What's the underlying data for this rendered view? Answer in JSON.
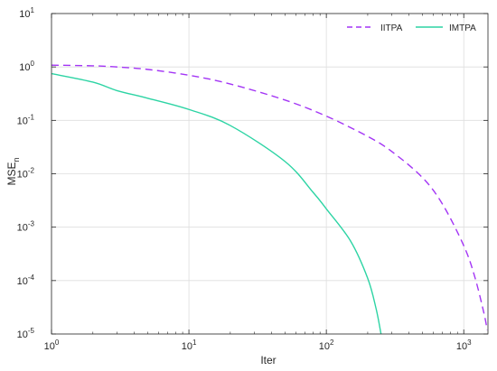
{
  "chart_data": {
    "type": "line",
    "xscale": "log",
    "yscale": "log",
    "xlim": [
      1,
      1500
    ],
    "ylim": [
      1e-05,
      10
    ],
    "grid": true,
    "legend_position": "top-right",
    "xlabel": "Iter",
    "ylabel": "MSE",
    "ylabel_subscript": "n",
    "x_ticks": [
      {
        "value": 1,
        "base": "10",
        "exp": "0"
      },
      {
        "value": 10,
        "base": "10",
        "exp": "1"
      },
      {
        "value": 100,
        "base": "10",
        "exp": "2"
      },
      {
        "value": 1000,
        "base": "10",
        "exp": "3"
      }
    ],
    "y_ticks": [
      {
        "value": 10,
        "base": "10",
        "exp": "1"
      },
      {
        "value": 1,
        "base": "10",
        "exp": "0"
      },
      {
        "value": 0.1,
        "base": "10",
        "exp": "-1"
      },
      {
        "value": 0.01,
        "base": "10",
        "exp": "-2"
      },
      {
        "value": 0.001,
        "base": "10",
        "exp": "-3"
      },
      {
        "value": 0.0001,
        "base": "10",
        "exp": "-4"
      },
      {
        "value": 1e-05,
        "base": "10",
        "exp": "-5"
      }
    ],
    "series": [
      {
        "name": "IITPA",
        "color": "#a335f5",
        "dashed": true,
        "points": [
          [
            1,
            1.08
          ],
          [
            2,
            1.05
          ],
          [
            3,
            1.0
          ],
          [
            5,
            0.9
          ],
          [
            10,
            0.7
          ],
          [
            20,
            0.48
          ],
          [
            50,
            0.24
          ],
          [
            100,
            0.12
          ],
          [
            200,
            0.05
          ],
          [
            300,
            0.026
          ],
          [
            500,
            0.0085
          ],
          [
            700,
            0.0027
          ],
          [
            1000,
            0.00045
          ],
          [
            1200,
            0.00012
          ],
          [
            1400,
            2.5e-05
          ],
          [
            1480,
            1.2e-05
          ]
        ]
      },
      {
        "name": "IMTPA",
        "color": "#2dd4a4",
        "dashed": false,
        "points": [
          [
            1,
            0.75
          ],
          [
            2,
            0.52
          ],
          [
            3,
            0.36
          ],
          [
            5,
            0.26
          ],
          [
            10,
            0.16
          ],
          [
            20,
            0.08
          ],
          [
            50,
            0.017
          ],
          [
            80,
            0.0045
          ],
          [
            100,
            0.0022
          ],
          [
            150,
            0.00055
          ],
          [
            200,
            0.00011
          ],
          [
            230,
            3e-05
          ],
          [
            250,
            1e-05
          ]
        ]
      }
    ]
  }
}
